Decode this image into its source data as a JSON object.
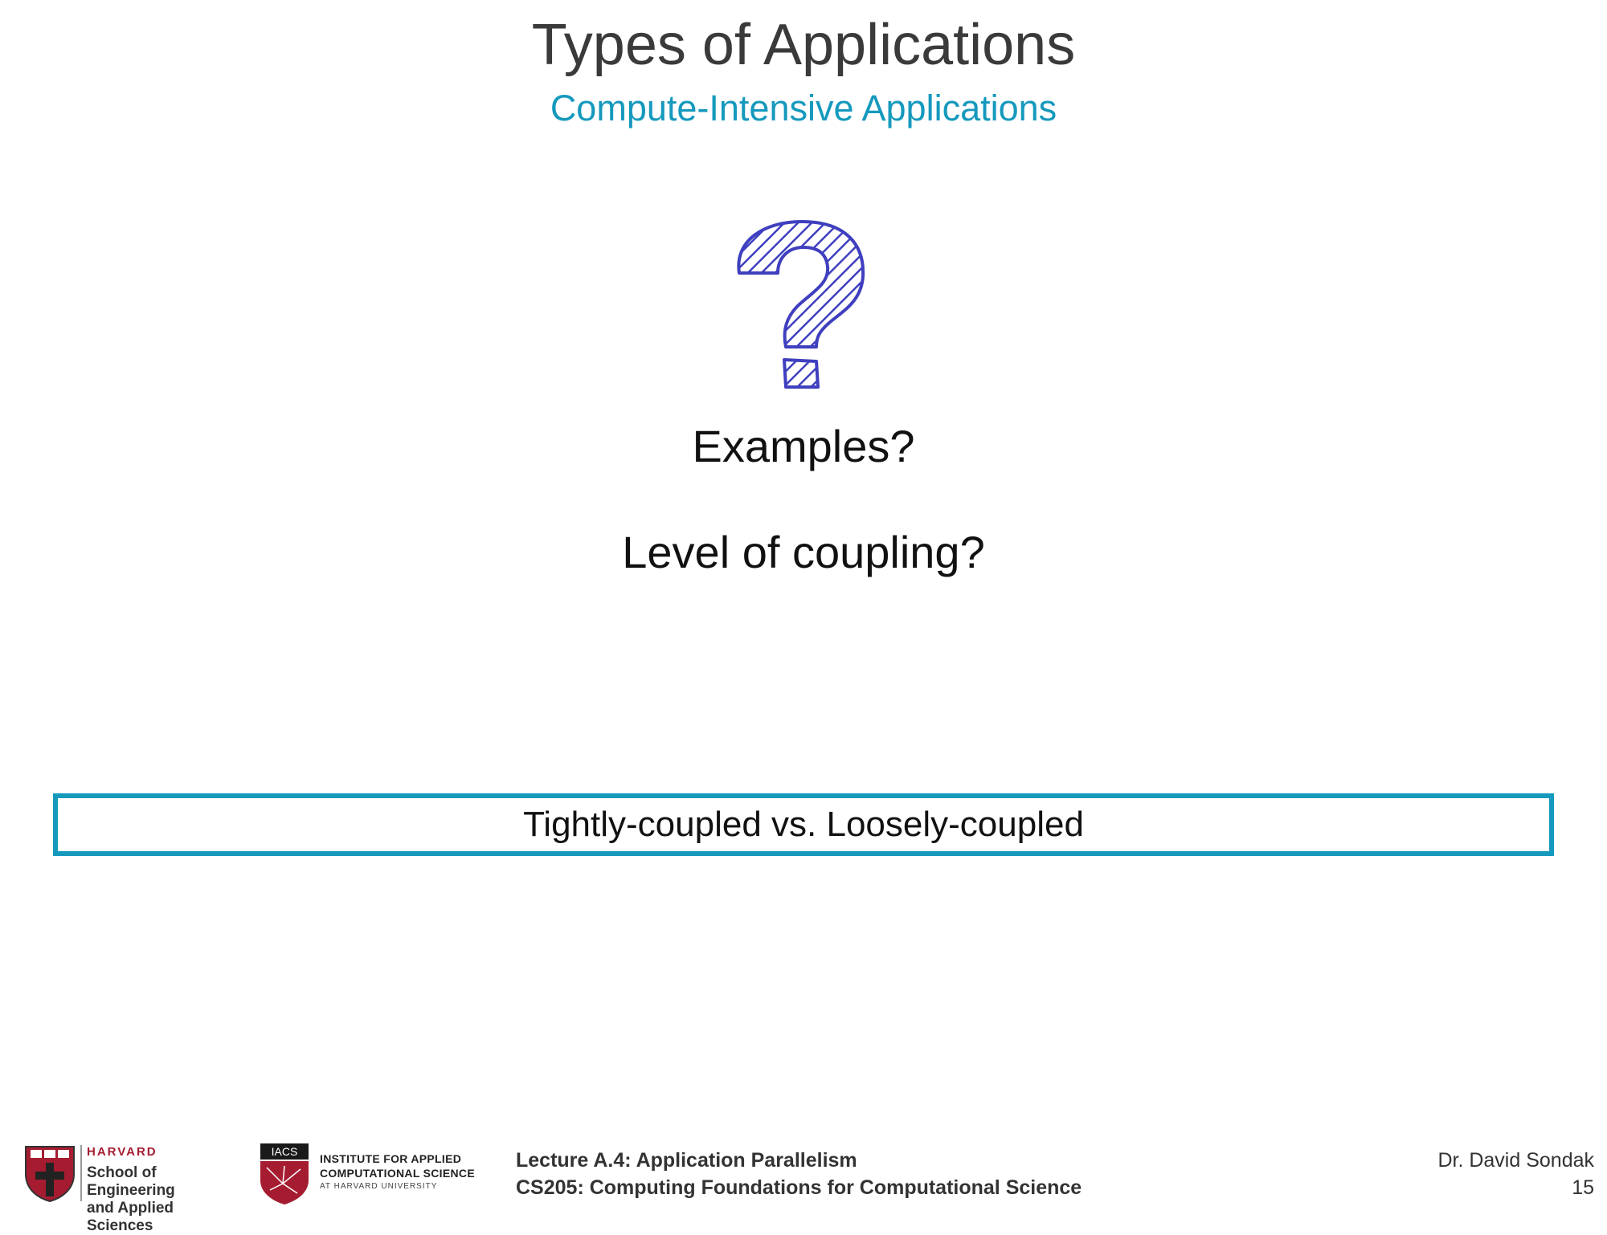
{
  "slide": {
    "title": "Types of Applications",
    "subtitle": "Compute-Intensive Applications",
    "questions": [
      "Examples?",
      "Level of coupling?"
    ],
    "callout": "Tightly-coupled vs. Loosely-coupled"
  },
  "footer": {
    "seas_logo": {
      "university": "HARVARD",
      "school_line1": "School of Engineering",
      "school_line2": "and Applied Sciences"
    },
    "iacs_logo": {
      "acronym": "IACS",
      "name_line1": "INSTITUTE FOR APPLIED",
      "name_line2": "COMPUTATIONAL SCIENCE",
      "name_line3": "AT HARVARD UNIVERSITY"
    },
    "lecture": "Lecture A.4: Application Parallelism",
    "course": "CS205: Computing Foundations for Computational Science",
    "author": "Dr. David Sondak",
    "page_number": "15"
  },
  "colors": {
    "accent": "#1599bd",
    "title": "#3a3a3a",
    "text": "#111111",
    "question_mark": "#3f3fbf",
    "harvard_crimson": "#a51c30"
  }
}
